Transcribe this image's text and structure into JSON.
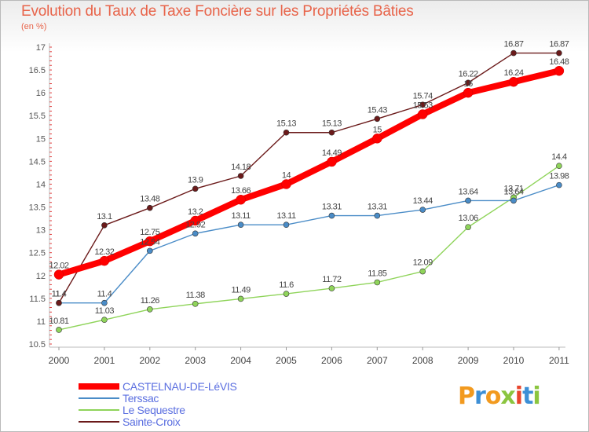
{
  "header": {
    "title": "Evolution du Taux de Taxe Foncière sur les Propriétés Bâties",
    "unit": "(en %)"
  },
  "logo": {
    "text": "Proxiti",
    "colors": [
      "#f29a1f",
      "#3d8fd6",
      "#f29a1f",
      "#8bc53f",
      "#e8452c",
      "#3d8fd6",
      "#8bc53f"
    ]
  },
  "chart_data": {
    "type": "line",
    "title": "Evolution du Taux de Taxe Foncière sur les Propriétés Bâties",
    "ylabel": "(en %)",
    "xlabel": "",
    "x": [
      "2000",
      "2001",
      "2002",
      "2003",
      "2004",
      "2005",
      "2006",
      "2007",
      "2008",
      "2009",
      "2010",
      "2011"
    ],
    "ylim": [
      10.5,
      17
    ],
    "yticks": [
      "10.5",
      "11",
      "11.5",
      "12",
      "12.5",
      "13",
      "13.5",
      "14",
      "14.5",
      "15",
      "15.5",
      "16",
      "16.5",
      "17"
    ],
    "grid": false,
    "legend_position": "bottom-left",
    "series": [
      {
        "name": "CASTELNAU-DE-LéVIS",
        "color": "#ff0000",
        "values": [
          12.02,
          12.32,
          12.75,
          13.2,
          13.66,
          14,
          14.49,
          15,
          15.53,
          16,
          16.24,
          16.48
        ],
        "labels": [
          "12.02",
          "12.32",
          "12.75",
          "13.2",
          "13.66",
          "14",
          "14.49",
          "15",
          "15.53",
          "16",
          "16.24",
          "16.48"
        ]
      },
      {
        "name": "Terssac",
        "color": "#4a8cc7",
        "values": [
          11.4,
          11.4,
          12.54,
          12.92,
          13.11,
          13.11,
          13.31,
          13.31,
          13.44,
          13.64,
          13.64,
          13.98
        ],
        "labels": [
          "11.4",
          "11.4",
          "12.54",
          "12.92",
          "13.11",
          "13.11",
          "13.31",
          "13.31",
          "13.44",
          "13.64",
          "13.64",
          "13.98"
        ]
      },
      {
        "name": "Le Sequestre",
        "color": "#8fd45a",
        "values": [
          10.81,
          11.03,
          11.26,
          11.38,
          11.49,
          11.6,
          11.72,
          11.85,
          12.09,
          13.06,
          13.71,
          14.4
        ],
        "labels": [
          "10.81",
          "11.03",
          "11.26",
          "11.38",
          "11.49",
          "11.6",
          "11.72",
          "11.85",
          "12.09",
          "13.06",
          "13.71",
          "14.4"
        ]
      },
      {
        "name": "Sainte-Croix",
        "color": "#6b1a1a",
        "values": [
          11.4,
          13.1,
          13.48,
          13.9,
          14.18,
          15.13,
          15.13,
          15.43,
          15.74,
          16.22,
          16.87,
          16.87
        ],
        "labels": [
          "11.4",
          "13.1",
          "13.48",
          "13.9",
          "14.18",
          "15.13",
          "15.13",
          "15.43",
          "15.74",
          "16.22",
          "16.87",
          "16.87"
        ]
      }
    ]
  }
}
